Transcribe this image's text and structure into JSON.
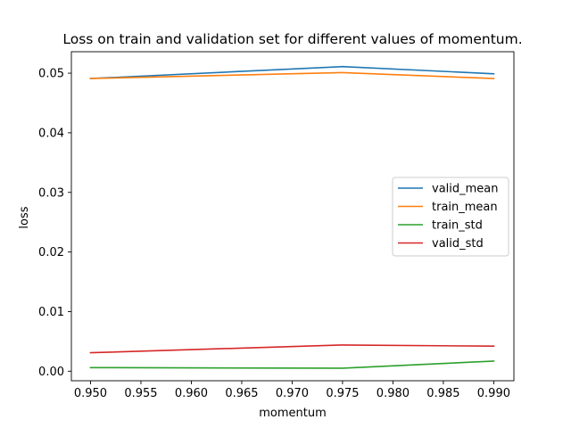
{
  "chart_data": {
    "type": "line",
    "title": "Loss on train and validation set for different values of momentum.",
    "xlabel": "momentum",
    "ylabel": "loss",
    "x": [
      0.95,
      0.975,
      0.99
    ],
    "xlim": [
      0.9481,
      0.992
    ],
    "ylim": [
      -0.0016,
      0.0536
    ],
    "xticks": [
      "0.950",
      "0.955",
      "0.960",
      "0.965",
      "0.970",
      "0.975",
      "0.980",
      "0.985",
      "0.990"
    ],
    "yticks": [
      "0.00",
      "0.01",
      "0.02",
      "0.03",
      "0.04",
      "0.05"
    ],
    "grid": false,
    "legend_position": "center-right",
    "series": [
      {
        "name": "valid_mean",
        "color": "#1f77b4",
        "values": [
          0.0491,
          0.0511,
          0.0499
        ]
      },
      {
        "name": "train_mean",
        "color": "#ff7f0e",
        "values": [
          0.0491,
          0.0501,
          0.0491
        ]
      },
      {
        "name": "train_std",
        "color": "#2ca02c",
        "values": [
          0.0006,
          0.0005,
          0.0017
        ]
      },
      {
        "name": "valid_std",
        "color": "#d62728",
        "values": [
          0.0031,
          0.0044,
          0.0042
        ]
      }
    ]
  }
}
